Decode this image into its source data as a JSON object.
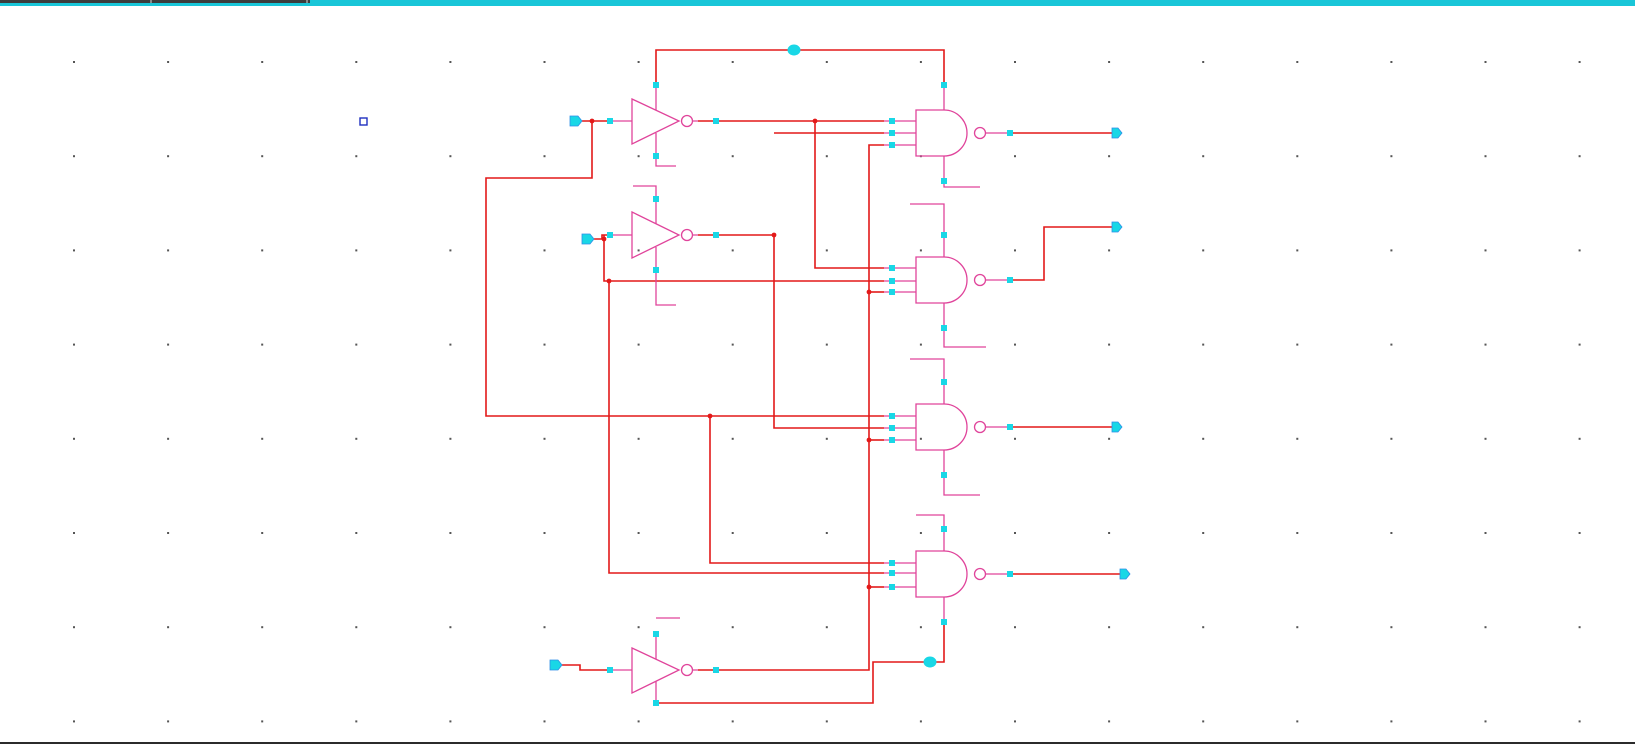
{
  "window": {
    "accent_color": "#19c6d8",
    "canvas_background": "#ffffff"
  },
  "schematic": {
    "wire_color": "#e31919",
    "gate_color": "#e0449b",
    "pin_color": "#19d7e6",
    "grid_dot_color": "#555555",
    "component_summary": {
      "inverters": 3,
      "nand_gates": 4,
      "input_ports": 3,
      "output_ports": 4
    }
  }
}
